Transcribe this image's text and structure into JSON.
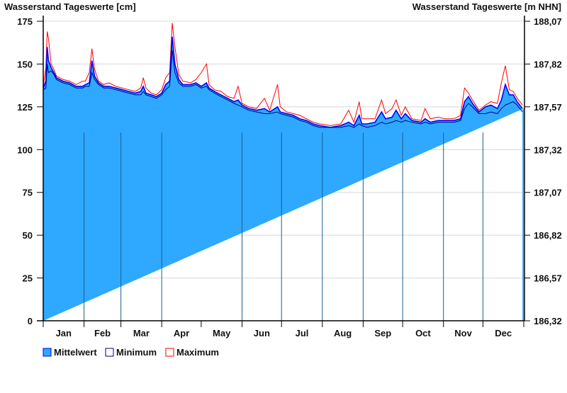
{
  "chart_data": {
    "type": "area",
    "title_left": "Wasserstand Tageswerte [cm]",
    "title_right": "Wasserstand Tageswerte [m NHN]",
    "ylim": [
      0,
      175
    ],
    "yticks": [
      0,
      25,
      50,
      75,
      100,
      125,
      150,
      175
    ],
    "ytick_labels": [
      "0",
      "25",
      "50",
      "75",
      "100",
      "125",
      "150",
      "175"
    ],
    "y2tick_labels": [
      "186,32",
      "186,57",
      "186,82",
      "187,07",
      "187,32",
      "187,57",
      "187,82",
      "188,07"
    ],
    "months": [
      "Jan",
      "Feb",
      "Mar",
      "Apr",
      "May",
      "Jun",
      "Jul",
      "Aug",
      "Sep",
      "Oct",
      "Nov",
      "Dec"
    ],
    "grid": true,
    "legend_position": "bottom-left",
    "colors": {
      "mean_fill": "#2ea9ff",
      "mean_line": "#0000ff",
      "min_line": "#000080",
      "max_line": "#ff0000",
      "grid": "#d8d8d8"
    },
    "x_day_of_year": [
      0,
      2,
      3,
      4,
      6,
      8,
      10,
      15,
      20,
      25,
      30,
      32,
      35,
      37,
      39,
      42,
      46,
      50,
      55,
      60,
      65,
      70,
      74,
      76,
      78,
      82,
      86,
      90,
      93,
      96,
      98,
      100,
      103,
      106,
      112,
      116,
      120,
      124,
      126,
      130,
      135,
      140,
      145,
      148,
      151,
      156,
      162,
      168,
      172,
      178,
      180,
      185,
      190,
      195,
      200,
      205,
      210,
      218,
      226,
      232,
      236,
      240,
      242,
      246,
      252,
      257,
      260,
      265,
      268,
      272,
      275,
      280,
      287,
      290,
      294,
      300,
      305,
      312,
      317,
      320,
      323,
      326,
      331,
      336,
      340,
      345,
      348,
      351,
      354,
      357,
      360,
      364
    ],
    "series": [
      {
        "name": "Mittelwert",
        "values": [
          136,
          140,
          160,
          152,
          148,
          145,
          142,
          140,
          139,
          137,
          137,
          138,
          139,
          152,
          143,
          139,
          137,
          137,
          136,
          135,
          134,
          133,
          134,
          137,
          133,
          132,
          131,
          133,
          138,
          140,
          166,
          150,
          141,
          138,
          138,
          139,
          137,
          139,
          136,
          134,
          132,
          130,
          128,
          129,
          126,
          124,
          123,
          124,
          122,
          125,
          122,
          121,
          120,
          118,
          117,
          115,
          114,
          113,
          114,
          116,
          114,
          120,
          115,
          115,
          116,
          122,
          118,
          119,
          123,
          118,
          121,
          117,
          116,
          118,
          116,
          117,
          117,
          117,
          118,
          128,
          131,
          127,
          122,
          125,
          126,
          124,
          129,
          138,
          132,
          132,
          128,
          124
        ]
      },
      {
        "name": "Minimum",
        "values": [
          135,
          136,
          150,
          145,
          146,
          144,
          141,
          139,
          138,
          136,
          136,
          137,
          137,
          145,
          141,
          138,
          136,
          136,
          135,
          134,
          133,
          132,
          132,
          134,
          132,
          131,
          130,
          132,
          135,
          137,
          158,
          145,
          139,
          137,
          137,
          138,
          136,
          137,
          135,
          133,
          131,
          129,
          127,
          126,
          125,
          123,
          122,
          121,
          121,
          122,
          121,
          120,
          119,
          117,
          116,
          114,
          113,
          113,
          113,
          114,
          113,
          115,
          114,
          113,
          114,
          116,
          115,
          116,
          117,
          116,
          117,
          116,
          115,
          116,
          115,
          116,
          116,
          116,
          117,
          124,
          127,
          125,
          121,
          121,
          122,
          121,
          124,
          126,
          127,
          128,
          126,
          122
        ]
      },
      {
        "name": "Maximum",
        "values": [
          137,
          148,
          169,
          165,
          150,
          147,
          143,
          141,
          140,
          138,
          140,
          140,
          145,
          159,
          147,
          140,
          138,
          139,
          137,
          136,
          135,
          134,
          136,
          142,
          136,
          133,
          132,
          135,
          142,
          145,
          174,
          160,
          144,
          140,
          139,
          141,
          145,
          150,
          138,
          135,
          134,
          131,
          130,
          137,
          127,
          125,
          124,
          130,
          123,
          138,
          125,
          122,
          121,
          120,
          118,
          116,
          115,
          114,
          115,
          123,
          116,
          128,
          118,
          118,
          118,
          129,
          121,
          124,
          129,
          120,
          125,
          118,
          117,
          124,
          118,
          119,
          118,
          118,
          120,
          136,
          133,
          129,
          123,
          126,
          128,
          127,
          139,
          149,
          135,
          134,
          130,
          126
        ]
      }
    ]
  }
}
